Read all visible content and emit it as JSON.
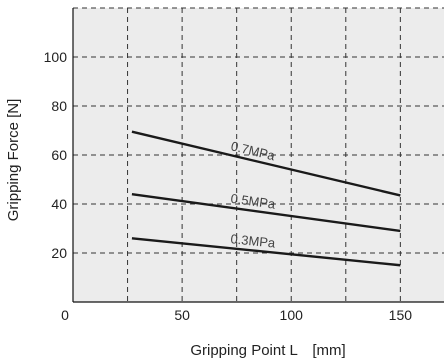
{
  "chart_data": {
    "type": "line",
    "xlabel": "Gripping Point L　[mm]",
    "ylabel": "Gripping Force [N]",
    "xlim": [
      0,
      170
    ],
    "ylim": [
      0,
      120
    ],
    "x_ticks": [
      {
        "value": 0,
        "label": "0"
      },
      {
        "value": 50,
        "label": "50"
      },
      {
        "value": 100,
        "label": "100"
      },
      {
        "value": 150,
        "label": "150"
      }
    ],
    "y_ticks": [
      {
        "value": 20,
        "label": "20"
      },
      {
        "value": 40,
        "label": "40"
      },
      {
        "value": 60,
        "label": "60"
      },
      {
        "value": 80,
        "label": "80"
      },
      {
        "value": 100,
        "label": "100"
      }
    ],
    "grid": true,
    "series": [
      {
        "name": "0.7MPa",
        "x": [
          27,
          150
        ],
        "y": [
          69.5,
          43.5
        ]
      },
      {
        "name": "0.5MPa",
        "x": [
          27,
          150
        ],
        "y": [
          44,
          29
        ]
      },
      {
        "name": "0.3MPa",
        "x": [
          27,
          150
        ],
        "y": [
          26,
          15
        ]
      }
    ],
    "colors": {
      "plot_background": "#ececec",
      "line": "#1a1a1a",
      "grid": "#333333",
      "label": "#555555"
    }
  }
}
